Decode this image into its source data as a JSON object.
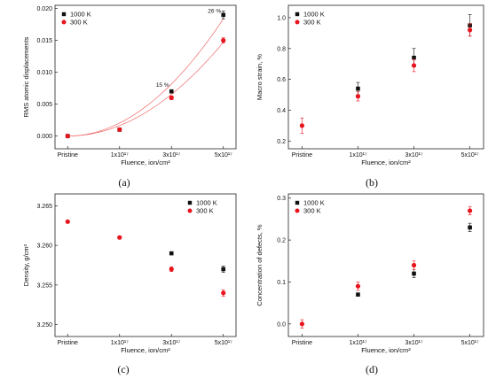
{
  "colors": {
    "k1000": "#111111",
    "k300": "#e8131b",
    "fit": "#f26a6a"
  },
  "chart_data": [
    {
      "type": "scatter",
      "panel_label": "(a)",
      "xlabel": "Fluence, ion/cm²",
      "ylabel": "RMS atomic displacements",
      "categories": [
        "Pristine",
        "1x10¹⁷",
        "3x10¹⁷",
        "5x10¹⁷"
      ],
      "ylim": [
        -0.002,
        0.0205
      ],
      "yticks": [
        0.0,
        0.005,
        0.01,
        0.015,
        0.02
      ],
      "ytick_labels": [
        "0.000",
        "0.005",
        "0.010",
        "0.015",
        "0.020"
      ],
      "legend": {
        "position": "top-left",
        "entries": [
          "1000 K",
          "300 K"
        ]
      },
      "grid": false,
      "series": [
        {
          "name": "1000 K",
          "values": [
            0.0,
            0.001,
            0.007,
            0.019
          ],
          "errors": [
            0,
            0,
            0,
            0.0006
          ]
        },
        {
          "name": "300 K",
          "values": [
            0.0,
            0.001,
            0.006,
            0.015
          ],
          "errors": [
            0,
            0,
            0.0003,
            0.0004
          ]
        }
      ],
      "fit_curves": true,
      "annotations": [
        {
          "text": "15 %",
          "x": 2,
          "y": 0.0077
        },
        {
          "text": "26 %",
          "x": 3,
          "y": 0.0193
        }
      ]
    },
    {
      "type": "scatter",
      "panel_label": "(b)",
      "xlabel": "Fluence, ion/cm²",
      "ylabel": "Macro strain, %",
      "categories": [
        "Pristine",
        "1x10¹⁷",
        "3x10¹⁷",
        "5x10¹⁷"
      ],
      "ylim": [
        0.15,
        1.08
      ],
      "yticks": [
        0.2,
        0.4,
        0.6,
        0.8,
        1.0
      ],
      "ytick_labels": [
        "0.2",
        "0.4",
        "0.6",
        "0.8",
        "1.0"
      ],
      "legend": {
        "position": "top-left",
        "entries": [
          "1000 K",
          "300 K"
        ]
      },
      "grid": false,
      "series": [
        {
          "name": "1000 K",
          "values": [
            null,
            0.54,
            0.74,
            0.95
          ],
          "errors": [
            0,
            0.04,
            0.06,
            0.07
          ]
        },
        {
          "name": "300 K",
          "values": [
            0.3,
            0.49,
            0.69,
            0.92
          ],
          "errors": [
            0.05,
            0.03,
            0.04,
            0.04
          ]
        }
      ],
      "annotations": []
    },
    {
      "type": "scatter",
      "panel_label": "(c)",
      "xlabel": "Fluence, ion/cm²",
      "ylabel": "Density, g/cm³",
      "categories": [
        "Pristine",
        "1x10¹⁷",
        "3x10¹⁷",
        "5x10¹⁷"
      ],
      "ylim": [
        3.2485,
        3.2665
      ],
      "yticks": [
        3.25,
        3.255,
        3.26,
        3.265
      ],
      "ytick_labels": [
        "3.250",
        "3.255",
        "3.260",
        "3.265"
      ],
      "legend": {
        "position": "top-right",
        "entries": [
          "1000 K",
          "300 K"
        ]
      },
      "grid": false,
      "series": [
        {
          "name": "1000 K",
          "values": [
            null,
            null,
            3.259,
            3.257
          ],
          "errors": [
            0,
            0,
            0,
            0.0004
          ]
        },
        {
          "name": "300 K",
          "values": [
            3.263,
            3.261,
            3.257,
            3.254
          ],
          "errors": [
            0,
            0.0002,
            0.0003,
            0.0004
          ]
        }
      ],
      "annotations": []
    },
    {
      "type": "scatter",
      "panel_label": "(d)",
      "xlabel": "Fluence, ion/cm²",
      "ylabel": "Concentration of defects, %",
      "categories": [
        "Pristine",
        "1x10¹⁷",
        "3x10¹⁷",
        "5x10¹⁷"
      ],
      "ylim": [
        -0.03,
        0.31
      ],
      "yticks": [
        0.0,
        0.1,
        0.2,
        0.3
      ],
      "ytick_labels": [
        "0.0",
        "0.1",
        "0.2",
        "0.3"
      ],
      "legend": {
        "position": "top-left",
        "entries": [
          "1000 K",
          "300 K"
        ]
      },
      "grid": false,
      "series": [
        {
          "name": "1000 K",
          "values": [
            null,
            0.07,
            0.12,
            0.23
          ],
          "errors": [
            0,
            0,
            0.01,
            0.01
          ]
        },
        {
          "name": "300 K",
          "values": [
            0.0,
            0.09,
            0.14,
            0.27
          ],
          "errors": [
            0.01,
            0.01,
            0.01,
            0.01
          ]
        }
      ],
      "annotations": []
    }
  ]
}
